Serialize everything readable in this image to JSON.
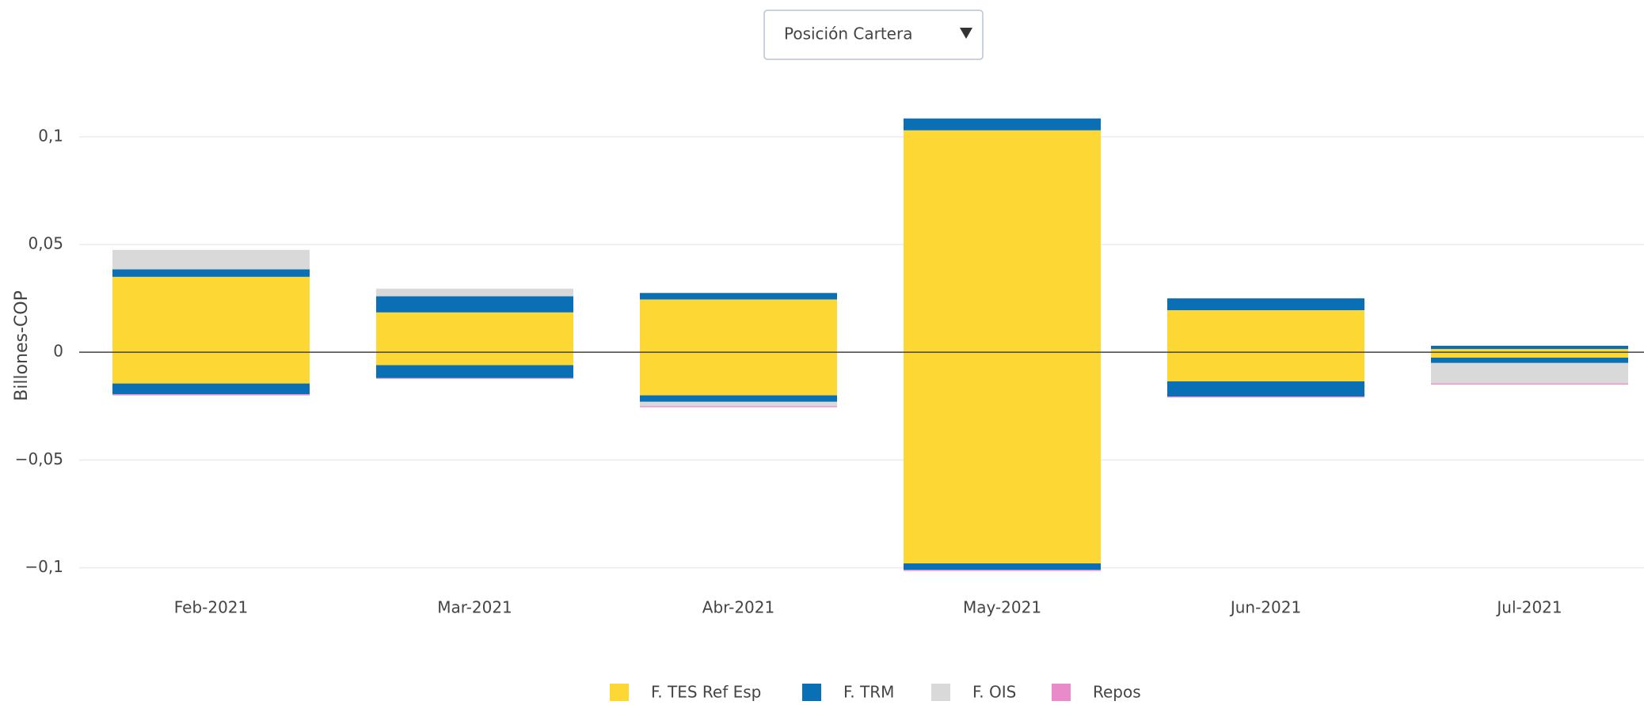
{
  "dropdown": {
    "label": "Posición Cartera"
  },
  "chart_data": {
    "type": "bar",
    "barmode": "relative",
    "ylabel": "Billones-COP",
    "categories": [
      "Feb-2021",
      "Mar-2021",
      "Abr-2021",
      "May-2021",
      "Jun-2021",
      "Jul-2021"
    ],
    "series": [
      {
        "name": "F. TES Ref Esp",
        "color": "#fdd835",
        "values": [
          0.035,
          0.0185,
          0.0245,
          0.103,
          0.0195,
          0.0015
        ],
        "negative_values": [
          -0.0145,
          -0.006,
          -0.02,
          -0.098,
          -0.0135,
          -0.0025
        ]
      },
      {
        "name": "F. TRM",
        "color": "#0a6fb4",
        "values": [
          0.0035,
          0.0075,
          0.003,
          0.0055,
          0.0055,
          0.0015
        ],
        "negative_values": [
          -0.005,
          -0.006,
          -0.003,
          -0.003,
          -0.007,
          -0.0025
        ]
      },
      {
        "name": "F. OIS",
        "color": "#d9d9d9",
        "values": [
          0.009,
          0.0035,
          0,
          0,
          0,
          0
        ],
        "negative_values": [
          0,
          0,
          -0.002,
          0,
          0,
          -0.0095
        ]
      },
      {
        "name": "Repos",
        "color": "#e98bc9",
        "values": [
          0,
          0,
          0,
          0,
          0,
          0
        ],
        "negative_values": [
          -0.0005,
          -0.0003,
          -0.0005,
          -0.0005,
          -0.0005,
          -0.0005
        ]
      }
    ],
    "ylim": [
      -0.109,
      0.115
    ],
    "yticks": [
      {
        "value": -0.1,
        "label": "−0,1"
      },
      {
        "value": -0.05,
        "label": "−0,05"
      },
      0,
      {
        "value": 0.05,
        "label": "0,05"
      },
      {
        "value": 0.1,
        "label": "0,1"
      }
    ],
    "grid": true,
    "legend": "bottom"
  }
}
